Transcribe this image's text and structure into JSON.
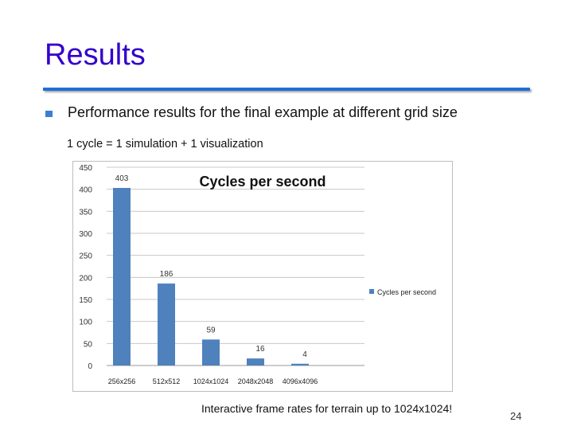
{
  "slide": {
    "title": "Results",
    "bullet": "Performance results for the final example at different grid size",
    "subline": "1 cycle = 1 simulation + 1 visualization",
    "caption": "Interactive frame rates for terrain up to 1024x1024!",
    "page_number": "24"
  },
  "colors": {
    "title": "#3300cc",
    "bar": "#4f81bd",
    "rule": "#1f6fd8"
  },
  "chart_data": {
    "type": "bar",
    "title": "Cycles per second",
    "categories": [
      "256x256",
      "512x512",
      "1024x1024",
      "2048x2048",
      "4096x4096"
    ],
    "series": [
      {
        "name": "Cycles per second",
        "values": [
          403,
          186,
          59,
          16,
          4
        ]
      }
    ],
    "data_labels": [
      "403",
      "186",
      "59",
      "16",
      "4"
    ],
    "yticks": [
      0,
      50,
      100,
      150,
      200,
      250,
      300,
      350,
      400,
      450
    ],
    "ylim": [
      0,
      450
    ],
    "grid": true,
    "legend_position": "right"
  }
}
